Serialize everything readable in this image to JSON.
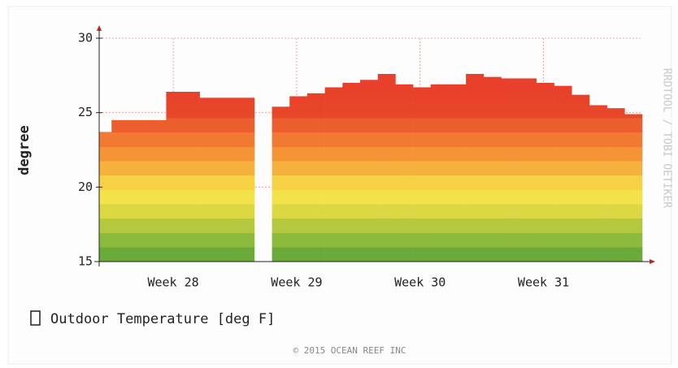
{
  "chart_data": {
    "type": "step",
    "y_label": "degree",
    "watermark": "RRDTOOL / TOBI OETIKER",
    "footer": "© 2015 OCEAN REEF INC",
    "x": [
      0,
      0.7,
      3.8,
      5.7,
      8.8,
      9.8,
      10.8,
      11.8,
      12.8,
      13.8,
      14.8,
      15.8,
      16.8,
      17.8,
      18.8,
      19.8,
      20.8,
      21.8,
      22.8,
      23.8,
      24.8,
      25.8,
      26.8,
      27.8,
      28.8,
      29.8
    ],
    "series": [
      {
        "name": "Outdoor Temperature [deg F]",
        "color": "#e8402a",
        "values": [
          23.7,
          24.5,
          26.4,
          26.0,
          null,
          25.4,
          26.1,
          26.3,
          26.7,
          27.0,
          27.2,
          27.6,
          26.9,
          26.7,
          26.9,
          26.9,
          27.6,
          27.4,
          27.3,
          27.3,
          27.0,
          26.8,
          26.2,
          25.5,
          25.3,
          24.9
        ]
      }
    ],
    "xlim": [
      0,
      30.8
    ],
    "xticks": [
      {
        "value": 4.2,
        "label": "Week 28"
      },
      {
        "value": 11.2,
        "label": "Week 29"
      },
      {
        "value": 18.2,
        "label": "Week 30"
      },
      {
        "value": 25.2,
        "label": "Week 31"
      }
    ],
    "ylim": [
      15,
      30
    ],
    "yticks": [
      15,
      20,
      25,
      30
    ],
    "grid": true
  }
}
